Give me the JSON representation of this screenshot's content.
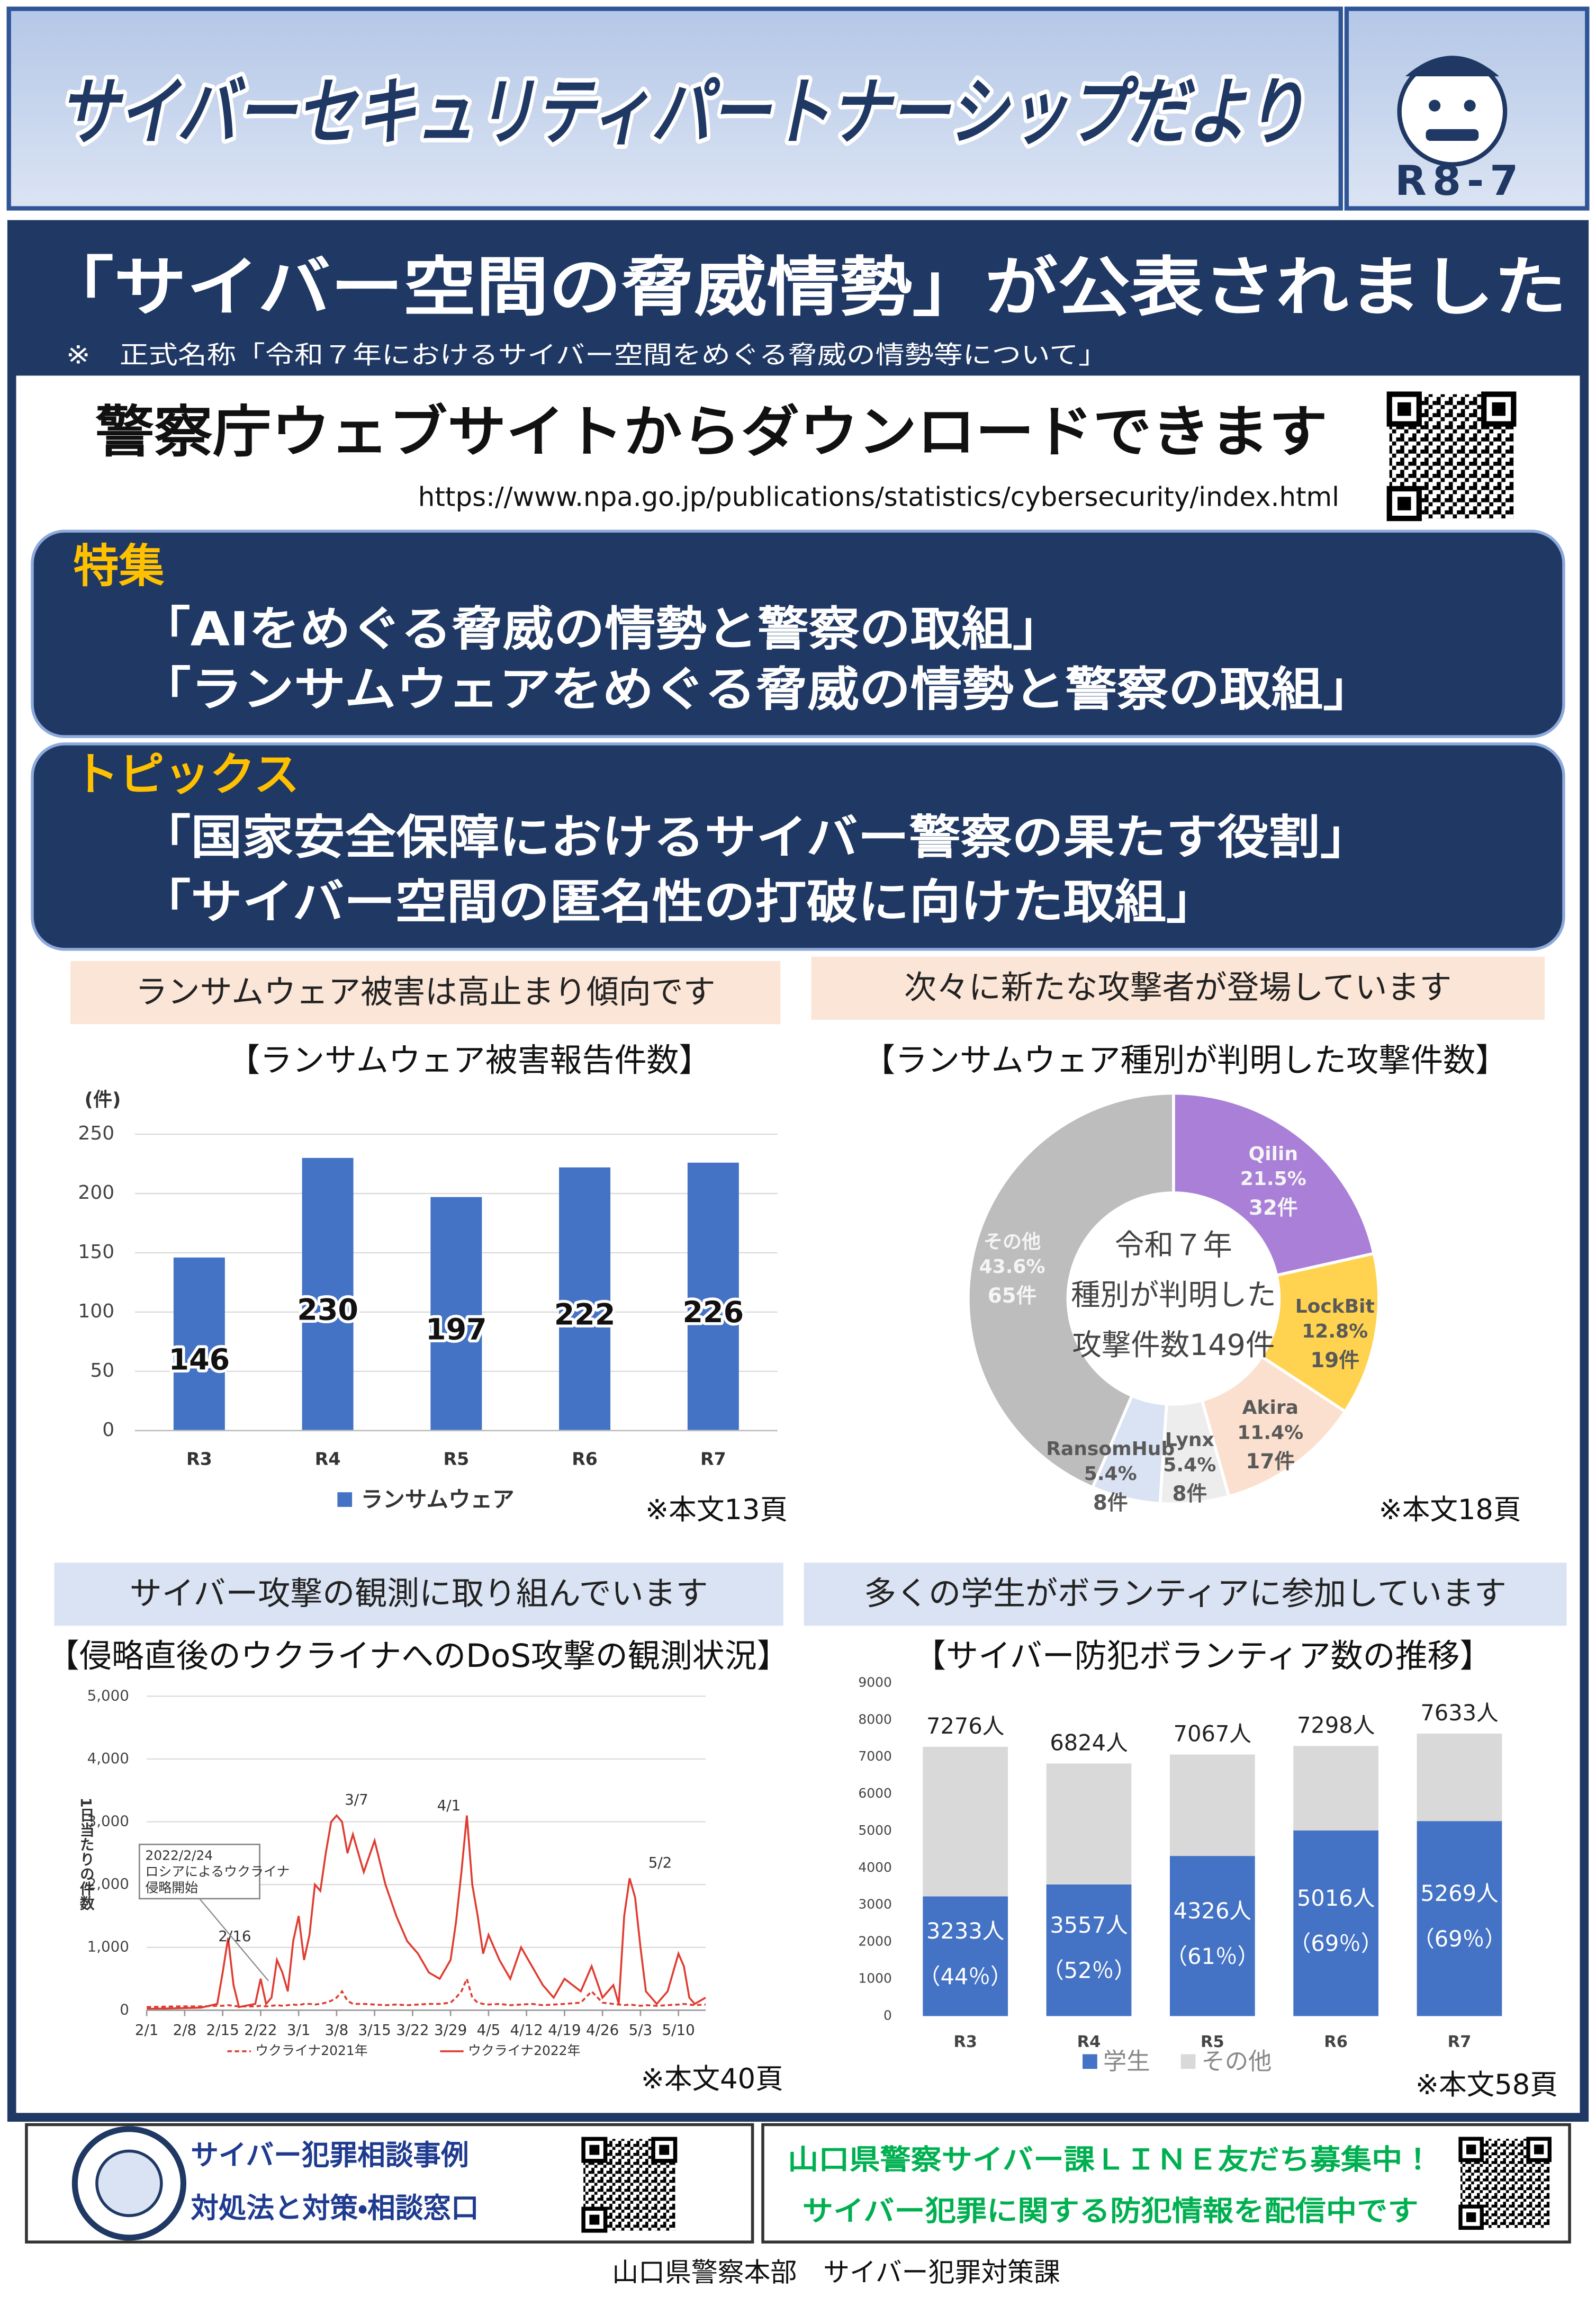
{
  "header": {
    "title": "サイバーセキュリティパートナーシップだより",
    "issue": "R8-7"
  },
  "headline": {
    "title": "「サイバー空間の脅威情勢」が公表されました",
    "note": "※　正式名称「令和７年におけるサイバー空間をめぐる脅威の情勢等について」"
  },
  "download": {
    "title": "警察庁ウェブサイトからダウンロードできます",
    "url": "https://www.npa.go.jp/publications/statistics/cybersecurity/index.html"
  },
  "features": {
    "heading": "特集",
    "items": [
      "「AIをめぐる脅威の情勢と警察の取組」",
      "「ランサムウェアをめぐる脅威の情勢と警察の取組」"
    ]
  },
  "topics": {
    "heading": "トピックス",
    "items": [
      "「国家安全保障におけるサイバー警察の果たす役割」",
      "「サイバー空間の匿名性の打破に向けた取組」"
    ]
  },
  "panels": [
    {
      "heading": "ランサムウェア被害は高止まり傾向です",
      "reference": "※本文13頁"
    },
    {
      "heading": "次々に新たな攻撃者が登場しています",
      "reference": "※本文18頁"
    },
    {
      "heading": "サイバー攻撃の観測に取り組んでいます",
      "reference": "※本文40頁"
    },
    {
      "heading": "多くの学生がボランティアに参加しています",
      "reference": "※本文58頁"
    }
  ],
  "chart_data": [
    {
      "type": "bar",
      "title": "【ランサムウェア被害報告件数】",
      "y_label": "(件)",
      "categories": [
        "R3",
        "R4",
        "R5",
        "R6",
        "R7"
      ],
      "series": [
        {
          "name": "ランサムウェア",
          "color": "#4472c4",
          "values": [
            146,
            230,
            197,
            222,
            226
          ]
        }
      ],
      "ylim": [
        0,
        250
      ],
      "yticks": [
        0,
        50,
        100,
        150,
        200,
        250
      ],
      "legend": "bottom"
    },
    {
      "type": "donut",
      "title": "【ランサムウェア種別が判明した攻撃件数】",
      "center_label": [
        "令和７年",
        "種別が判明した",
        "攻撃件数149件"
      ],
      "categories": [
        "Qilin",
        "LockBit",
        "Akira",
        "Lynx",
        "RansomHub",
        "その他"
      ],
      "values": [
        21.5,
        12.8,
        11.4,
        5.4,
        5.4,
        43.6
      ],
      "value_labels": [
        "21.5%",
        "12.8%",
        "11.4%",
        "5.4%",
        "5.4%",
        "43.6%"
      ],
      "counts": [
        32,
        19,
        17,
        8,
        8,
        65
      ],
      "count_labels": [
        "32件",
        "19件",
        "17件",
        "8件",
        "8件",
        "65件"
      ],
      "colors": [
        "#a97fd8",
        "#ffd34f",
        "#fbe0cf",
        "#ededed",
        "#dae3f3",
        "#bdbdbd"
      ]
    },
    {
      "type": "line",
      "title": "【侵略直後のウクライナへのDoS攻撃の観測状況】",
      "y_label": "1日当たりの件数",
      "x": [
        0,
        5,
        10,
        13,
        14,
        15,
        16,
        17,
        20,
        21,
        22,
        23,
        24,
        25,
        26,
        27,
        28,
        29,
        30,
        31,
        32,
        33,
        34,
        35,
        36,
        37,
        38,
        40,
        42,
        44,
        46,
        48,
        50,
        52,
        54,
        56,
        57,
        58,
        59,
        60,
        61,
        62,
        63,
        65,
        67,
        69,
        71,
        73,
        75,
        77,
        80,
        82,
        84,
        86,
        87,
        88,
        89,
        90,
        91,
        92,
        94,
        96,
        98,
        99,
        100,
        101,
        103
      ],
      "xlim": [
        0,
        103
      ],
      "xticks": [
        {
          "value": 0,
          "label": "2/1"
        },
        {
          "value": 7,
          "label": "2/8"
        },
        {
          "value": 14,
          "label": "2/15"
        },
        {
          "value": 21,
          "label": "2/22"
        },
        {
          "value": 28,
          "label": "3/1"
        },
        {
          "value": 35,
          "label": "3/8"
        },
        {
          "value": 42,
          "label": "3/15"
        },
        {
          "value": 49,
          "label": "3/22"
        },
        {
          "value": 56,
          "label": "3/29"
        },
        {
          "value": 63,
          "label": "4/5"
        },
        {
          "value": 70,
          "label": "4/12"
        },
        {
          "value": 77,
          "label": "4/19"
        },
        {
          "value": 84,
          "label": "4/26"
        },
        {
          "value": 91,
          "label": "5/3"
        },
        {
          "value": 98,
          "label": "5/10"
        }
      ],
      "ylim": [
        0,
        5000
      ],
      "yticks": [
        0,
        {
          "value": 1000,
          "label": "1,000"
        },
        {
          "value": 2000,
          "label": "2,000"
        },
        {
          "value": 3000,
          "label": "3,000"
        },
        {
          "value": 4000,
          "label": "4,000"
        },
        {
          "value": 5000,
          "label": "5,000"
        }
      ],
      "grid": true,
      "series": [
        {
          "name": "ウクライナ2021年",
          "color": "#e03c31",
          "line_style": "dashed",
          "values": [
            50,
            60,
            60,
            70,
            70,
            80,
            70,
            60,
            60,
            70,
            60,
            70,
            80,
            70,
            80,
            90,
            80,
            100,
            100,
            90,
            100,
            120,
            150,
            200,
            300,
            150,
            100,
            100,
            90,
            80,
            90,
            80,
            90,
            100,
            100,
            120,
            200,
            300,
            500,
            200,
            120,
            100,
            90,
            100,
            80,
            90,
            100,
            80,
            90,
            100,
            120,
            300,
            120,
            100,
            90,
            80,
            90,
            80,
            70,
            80,
            70,
            80,
            90,
            100,
            90,
            80,
            90
          ]
        },
        {
          "name": "ウクライナ2022年",
          "color": "#e03c31",
          "line_style": "solid",
          "values": [
            20,
            30,
            40,
            100,
            600,
            1150,
            400,
            50,
            100,
            500,
            100,
            200,
            800,
            600,
            300,
            1100,
            1500,
            800,
            1200,
            2000,
            1900,
            2500,
            3000,
            3100,
            3000,
            2500,
            2800,
            2200,
            2700,
            2000,
            1500,
            1100,
            900,
            600,
            500,
            800,
            1400,
            2200,
            3100,
            2000,
            1500,
            900,
            1200,
            800,
            500,
            1000,
            700,
            400,
            200,
            500,
            300,
            700,
            200,
            400,
            100,
            1500,
            2100,
            1800,
            1000,
            300,
            100,
            300,
            900,
            700,
            200,
            100,
            200
          ]
        }
      ],
      "annotations": [
        "2/16",
        "3/7",
        "4/1",
        "5/2"
      ],
      "callout": [
        "2022/2/24",
        "ロシアによるウクライナ",
        "侵略開始"
      ]
    },
    {
      "type": "stacked_bar",
      "title": "【サイバー防犯ボランティア数の推移】",
      "categories": [
        "R3",
        "R4",
        "R5",
        "R6",
        "R7"
      ],
      "series": [
        {
          "name": "学生",
          "color": "#4472c4",
          "values": [
            3233,
            3557,
            4326,
            5016,
            5269
          ],
          "value_labels": [
            "3233人",
            "3557人",
            "4326人",
            "5016人",
            "5269人"
          ],
          "share_labels": [
            "（44％）",
            "（52％）",
            "（61％）",
            "（69％）",
            "（69％）"
          ]
        },
        {
          "name": "その他",
          "color": "#d9d9d9",
          "values": [
            4043,
            3267,
            2741,
            2282,
            2364
          ]
        }
      ],
      "totals": [
        7276,
        6824,
        7067,
        7298,
        7633
      ],
      "total_labels": [
        "7276人",
        "6824人",
        "7067人",
        "7298人",
        "7633人"
      ],
      "ylim": [
        0,
        9000
      ],
      "yticks": [
        0,
        1000,
        2000,
        3000,
        4000,
        5000,
        6000,
        7000,
        8000,
        9000
      ],
      "legend": "bottom"
    }
  ],
  "footer": {
    "consult": [
      "サイバー犯罪相談事例",
      "対処法と対策・相談窓口"
    ],
    "line": [
      "山口県警察サイバー課ＬＩＮＥ友だち募集中！",
      "サイバー犯罪に関する防犯情報を配信中です"
    ],
    "issuer": "山口県警察本部　サイバー犯罪対策課"
  }
}
